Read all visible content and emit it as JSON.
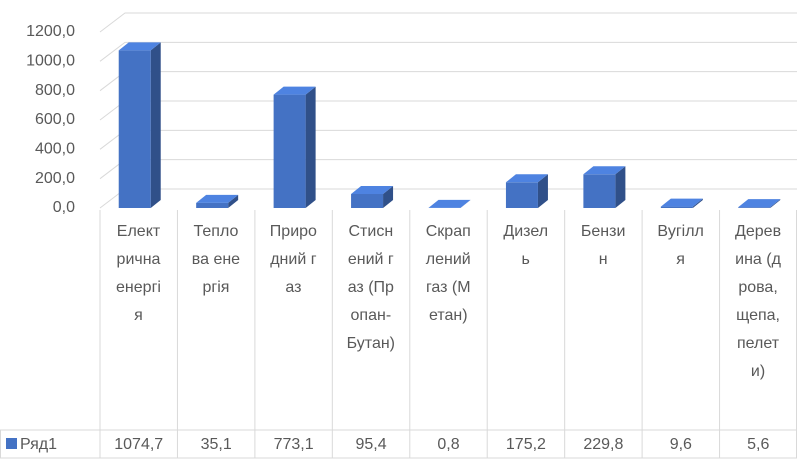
{
  "chart_data": {
    "type": "bar",
    "categories": [
      "Електрична енергія",
      "Теплова енергія",
      "Природний газ",
      "Стиснений газ (Пропан-Бутан)",
      "Скраплений газ (Метан)",
      "Дизель",
      "Бензин",
      "Вугілля",
      "Деревина (дрова, щепа, пелети)"
    ],
    "series": [
      {
        "name": "Ряд1",
        "color": "#4472c4",
        "values": [
          1074.7,
          35.1,
          773.1,
          95.4,
          0.8,
          175.2,
          229.8,
          9.6,
          5.6
        ],
        "value_labels": [
          "1074,7",
          "35,1",
          "773,1",
          "95,4",
          "0,8",
          "175,2",
          "229,8",
          "9,6",
          "5,6"
        ]
      }
    ],
    "ylim": [
      0,
      1200
    ],
    "yticks": [
      {
        "value": 0,
        "label": "0,0"
      },
      {
        "value": 200,
        "label": "200,0"
      },
      {
        "value": 400,
        "label": "400,0"
      },
      {
        "value": 600,
        "label": "600,0"
      },
      {
        "value": 800,
        "label": "800,0"
      },
      {
        "value": 1000,
        "label": "1000,0"
      },
      {
        "value": 1200,
        "label": "1200,0"
      }
    ],
    "grid": true
  }
}
